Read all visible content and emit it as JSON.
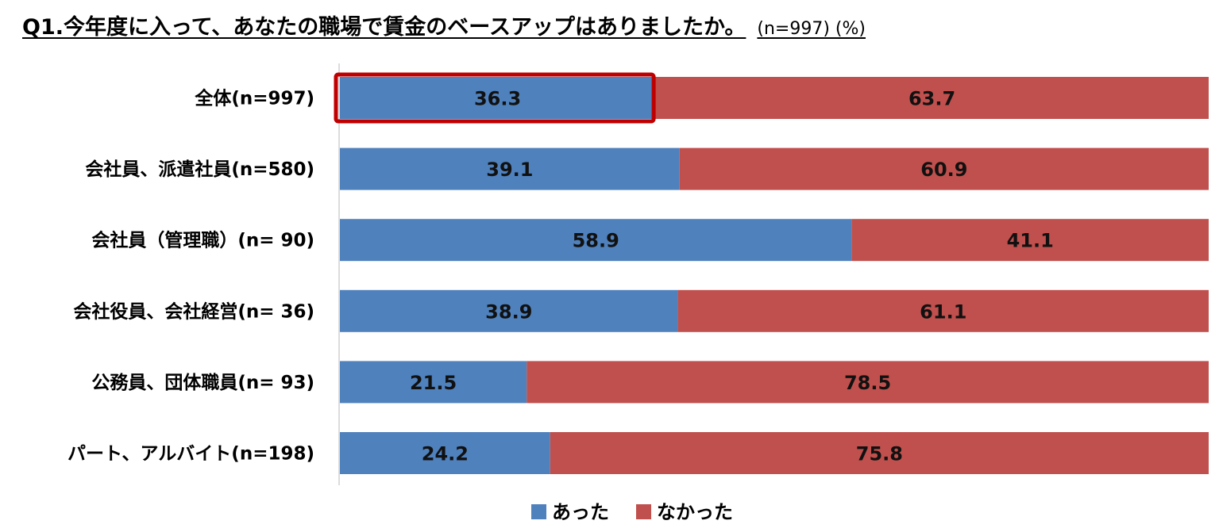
{
  "chart_data": {
    "type": "bar",
    "orientation": "horizontal",
    "stacked": true,
    "title": "Q1.今年度に入って、あなたの職場で賃金のベースアップはありましたか。",
    "subtitle": "(n=997) (%)",
    "categories": [
      "全体(n=997)",
      "会社員、派遣社員(n=580)",
      "会社員（管理職）(n= 90)",
      "会社役員、会社経営(n= 36)",
      "公務員、団体職員(n= 93)",
      "パート、アルバイト(n=198)"
    ],
    "series": [
      {
        "name": "あった",
        "color": "#4f81bd",
        "values": [
          36.3,
          39.1,
          58.9,
          38.9,
          21.5,
          24.2
        ]
      },
      {
        "name": "なかった",
        "color": "#c0504d",
        "values": [
          63.7,
          60.9,
          41.1,
          61.1,
          78.5,
          75.8
        ]
      }
    ],
    "xlim": [
      0,
      100
    ],
    "highlight": {
      "category_index": 0,
      "series_index": 0,
      "color": "#c00000"
    },
    "legend": "bottom-center"
  }
}
